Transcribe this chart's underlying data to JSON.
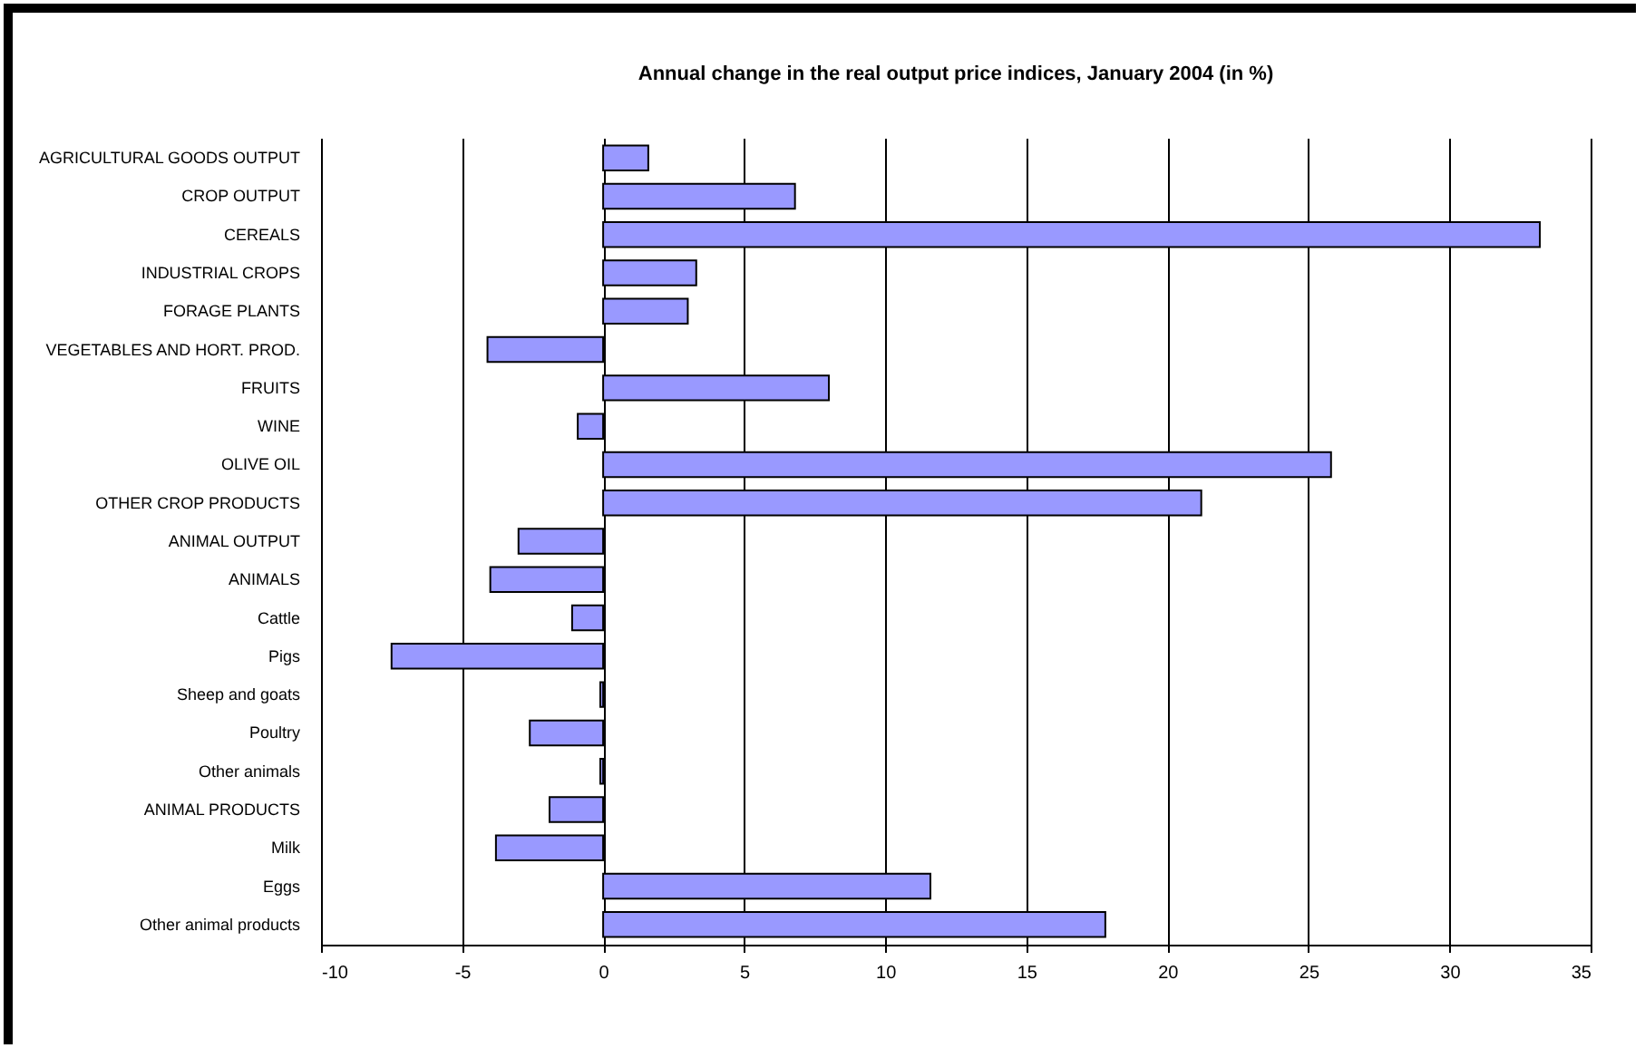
{
  "chart_data": {
    "type": "bar",
    "orientation": "horizontal",
    "title": "Annual change in the real output price indices, January 2004 (in %)",
    "categories": [
      "AGRICULTURAL GOODS OUTPUT",
      "CROP OUTPUT ",
      "CEREALS",
      "INDUSTRIAL CROPS",
      "FORAGE PLANTS",
      "VEGETABLES AND HORT. PROD.",
      "FRUITS",
      "WINE",
      "OLIVE OIL",
      "OTHER CROP PRODUCTS",
      "ANIMAL OUTPUT ",
      "ANIMALS",
      "Cattle",
      "Pigs",
      "Sheep and goats",
      "Poultry",
      "Other animals",
      "ANIMAL PRODUCTS",
      "Milk",
      "Eggs",
      "Other animal products"
    ],
    "values": [
      1.6,
      6.8,
      33.2,
      3.3,
      3.0,
      -4.1,
      8.0,
      -0.9,
      25.8,
      21.2,
      -3.0,
      -4.0,
      -1.1,
      -7.5,
      -0.1,
      -2.6,
      -0.1,
      -1.9,
      -3.8,
      11.6,
      17.8
    ],
    "color": "#9999ff",
    "xlim": [
      -10,
      35
    ],
    "xticks": [
      -10,
      -5,
      0,
      5,
      10,
      15,
      20,
      25,
      30,
      35
    ],
    "grid": "x"
  }
}
